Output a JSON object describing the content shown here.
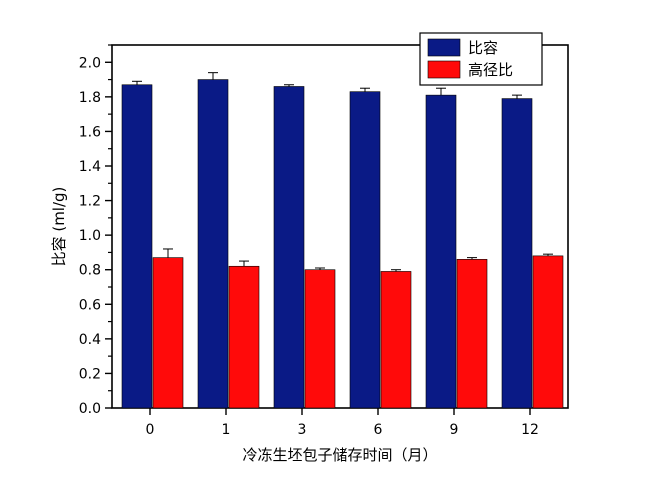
{
  "chart_data": {
    "type": "bar",
    "categories": [
      "0",
      "1",
      "3",
      "6",
      "9",
      "12"
    ],
    "series": [
      {
        "name": "比容",
        "color": "#0a1a86",
        "values": [
          1.87,
          1.9,
          1.86,
          1.83,
          1.81,
          1.79
        ],
        "errors": [
          0.02,
          0.04,
          0.01,
          0.02,
          0.04,
          0.02
        ]
      },
      {
        "name": "高径比",
        "color": "#ff0a0a",
        "values": [
          0.87,
          0.82,
          0.8,
          0.79,
          0.86,
          0.88
        ],
        "errors": [
          0.05,
          0.03,
          0.01,
          0.01,
          0.01,
          0.01
        ]
      }
    ],
    "xlabel": "冷冻生坯包子储存时间（月）",
    "ylabel": "比容 (ml/g)",
    "ylim": [
      0.0,
      2.1
    ],
    "yticks": [
      "0.0",
      "0.2",
      "0.4",
      "0.6",
      "0.8",
      "1.0",
      "1.2",
      "1.4",
      "1.6",
      "1.8",
      "2.0"
    ],
    "legend_position": "top-right",
    "grid": false
  }
}
